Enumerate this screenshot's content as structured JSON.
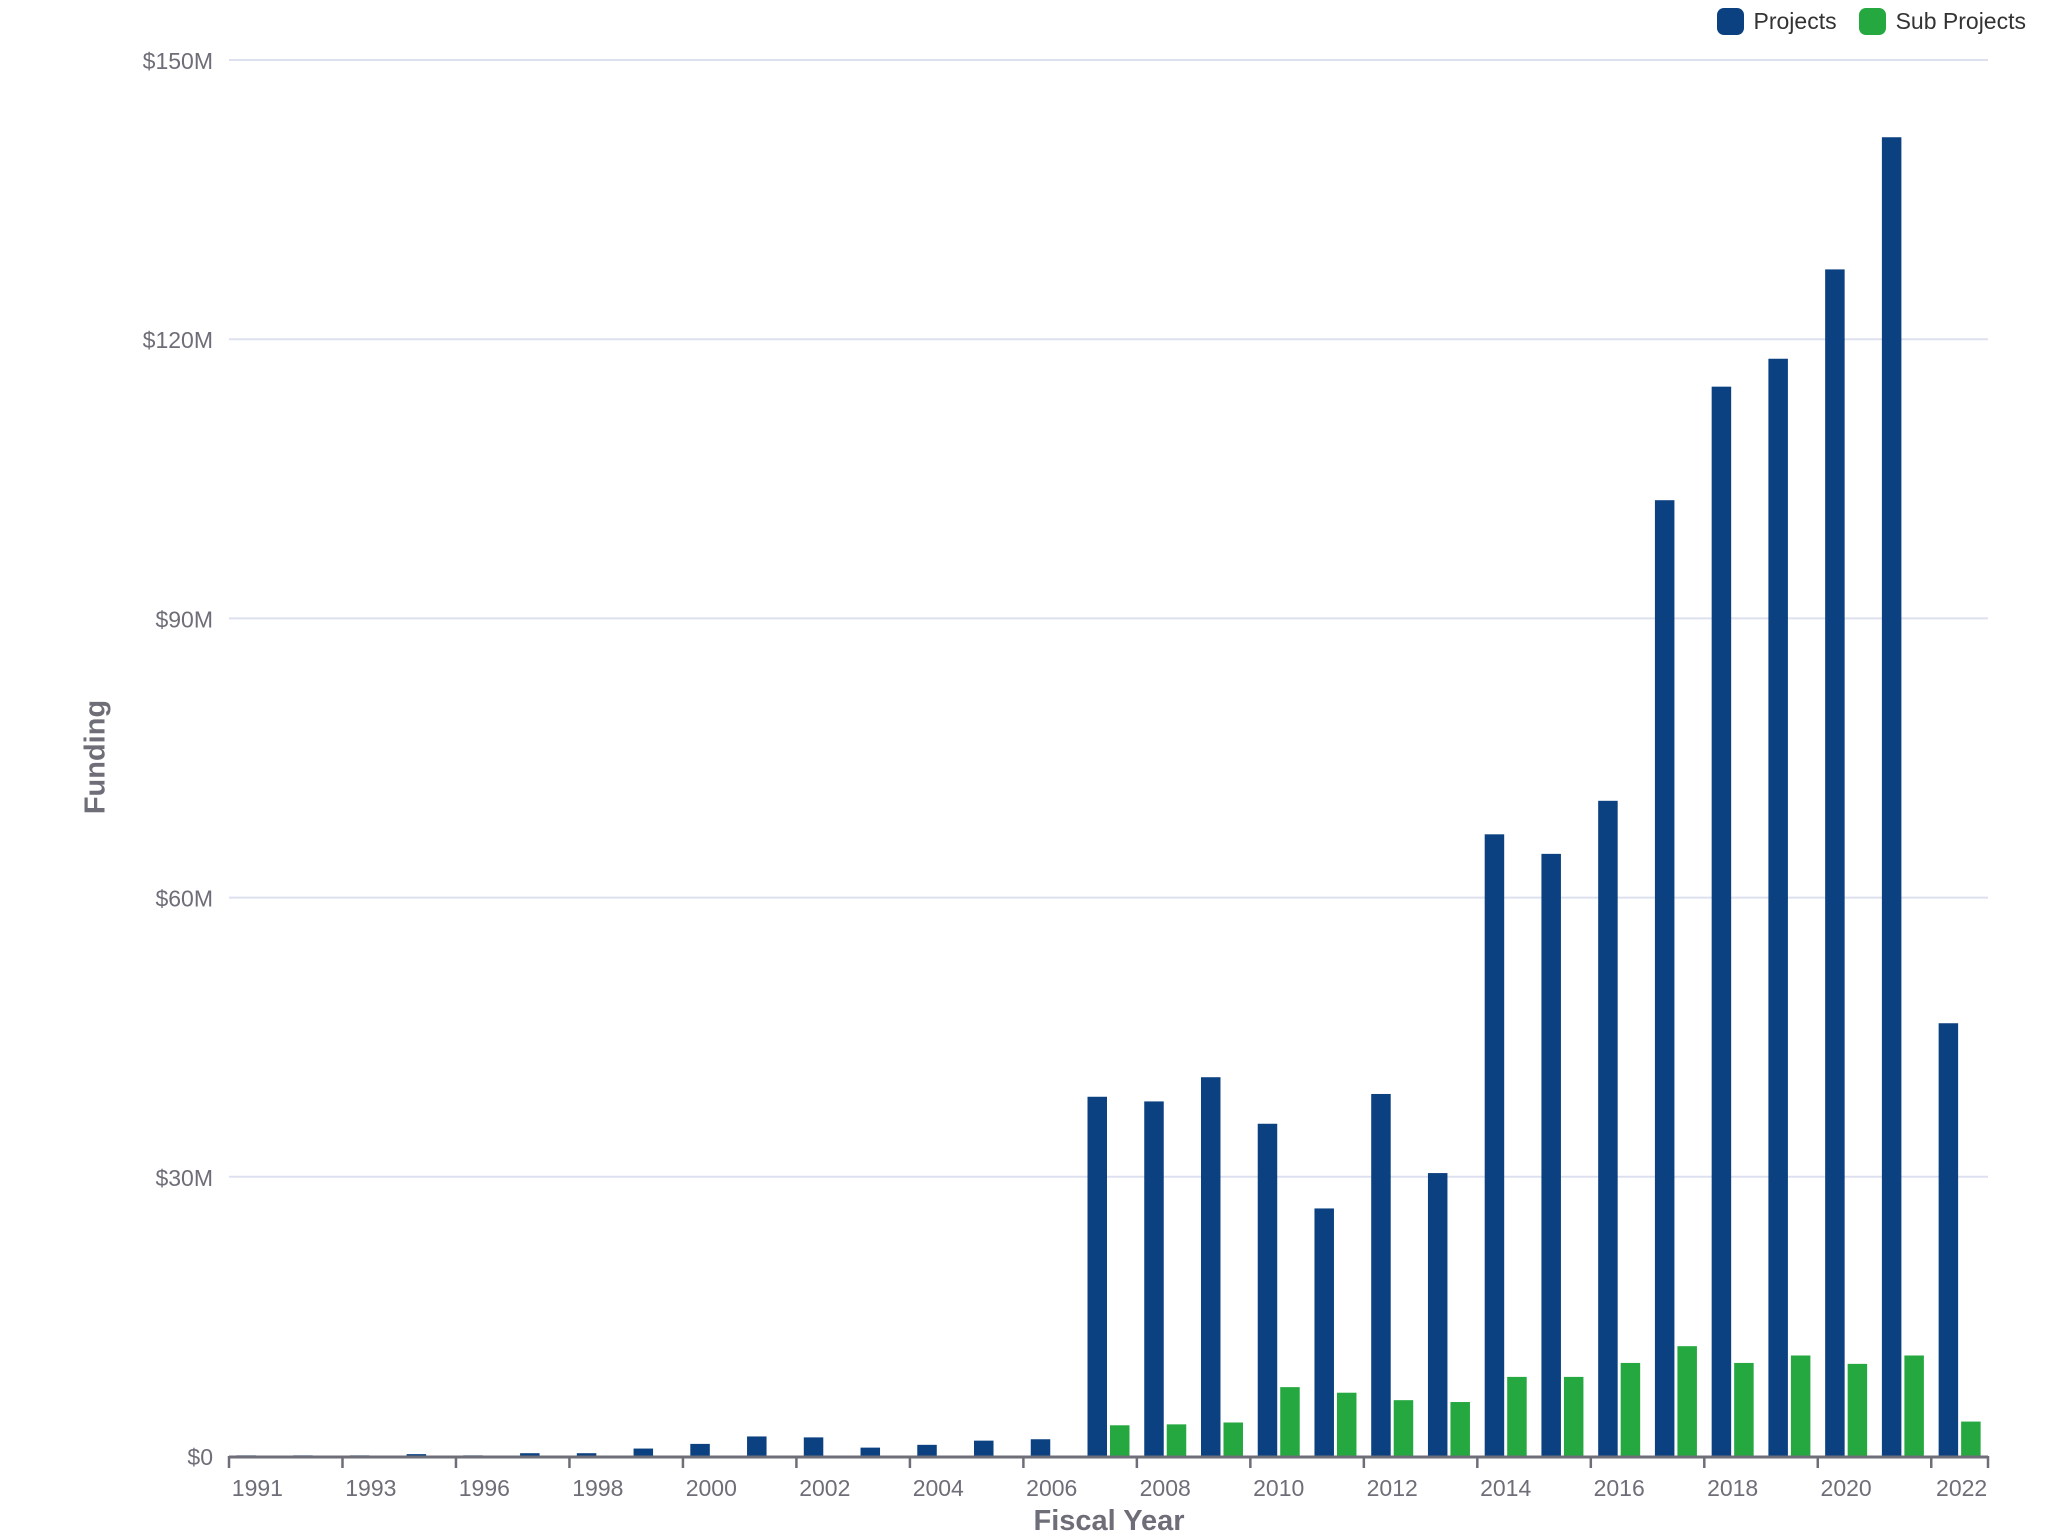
{
  "legend": {
    "items": [
      {
        "label": "Projects",
        "color": "#0b4081"
      },
      {
        "label": "Sub Projects",
        "color": "#25a83f"
      }
    ]
  },
  "axes": {
    "ylabel": "Funding",
    "xlabel": "Fiscal Year",
    "y_ticks": [
      "$0",
      "$30M",
      "$60M",
      "$90M",
      "$120M",
      "$150M"
    ],
    "x_tick_labels": [
      "1991",
      "1993",
      "1996",
      "1998",
      "2000",
      "2002",
      "2004",
      "2006",
      "2008",
      "2010",
      "2012",
      "2014",
      "2016",
      "2018",
      "2020",
      "2022"
    ]
  },
  "colors": {
    "projects": "#0b4081",
    "sub_projects": "#25a83f",
    "grid": "#dde1ef",
    "axis": "#6e6e78",
    "tick_text": "#6e6e78"
  },
  "chart_data": {
    "type": "bar",
    "title": "",
    "xlabel": "Fiscal Year",
    "ylabel": "Funding",
    "ylim": [
      0,
      150
    ],
    "y_unit": "$M",
    "grid": true,
    "legend_position": "top-right",
    "categories": [
      "1991",
      "1992",
      "1993",
      "1995",
      "1996",
      "1997",
      "1998",
      "1999",
      "2000",
      "2001",
      "2002",
      "2003",
      "2004",
      "2005",
      "2006",
      "2007",
      "2008",
      "2009",
      "2010",
      "2011",
      "2012",
      "2013",
      "2014",
      "2015",
      "2016",
      "2017",
      "2018",
      "2019",
      "2020",
      "2021",
      "2022"
    ],
    "series": [
      {
        "name": "Projects",
        "values": [
          0.07,
          0.07,
          0.07,
          0.2,
          0.07,
          0.3,
          0.3,
          0.8,
          1.3,
          2.1,
          2.0,
          0.9,
          1.2,
          1.65,
          1.8,
          38.6,
          38.1,
          40.7,
          35.7,
          26.6,
          38.9,
          30.4,
          66.8,
          64.7,
          70.4,
          102.7,
          114.9,
          117.9,
          127.5,
          141.7,
          46.5
        ]
      },
      {
        "name": "Sub Projects",
        "values": [
          0,
          0,
          0,
          0,
          0,
          0,
          0,
          0,
          0,
          0,
          0,
          0,
          0,
          0,
          0,
          3.3,
          3.4,
          3.6,
          7.4,
          6.8,
          6.0,
          5.8,
          8.5,
          8.5,
          10.0,
          11.8,
          10.0,
          10.8,
          9.9,
          10.8,
          3.7
        ]
      }
    ]
  }
}
